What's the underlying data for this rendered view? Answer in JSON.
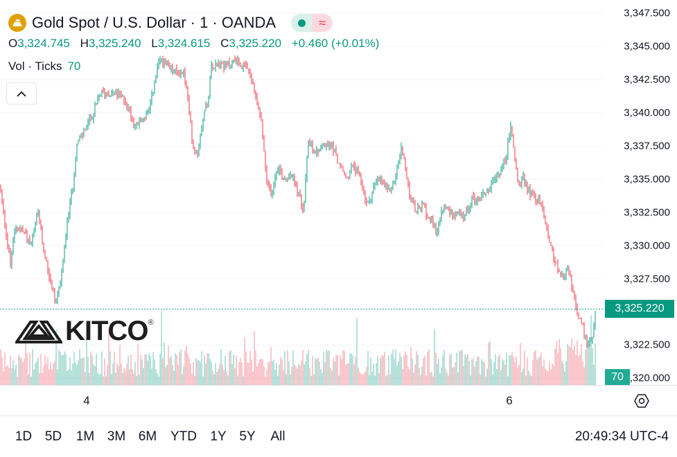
{
  "symbol": {
    "title": "Gold Spot / U.S. Dollar · 1 · OANDA",
    "icon": "gold-bar-icon",
    "status_icons": [
      "market-open-dot-icon",
      "wave-icon"
    ]
  },
  "ohlc": {
    "open_label": "O",
    "open": "3,324.745",
    "high_label": "H",
    "high": "3,325.240",
    "low_label": "L",
    "low": "3,324.615",
    "close_label": "C",
    "close": "3,325.220",
    "change": "+0.460 (+0.01%)"
  },
  "volume_legend": {
    "label": "Vol · Ticks",
    "value": "70"
  },
  "watermark": {
    "text": "KITCO",
    "mark": "®"
  },
  "colors": {
    "up": "#089981",
    "down": "#f23645",
    "grid": "#f0f3fa",
    "text": "#131722"
  },
  "price_scale": {
    "ticks": [
      "3,347.500",
      "3,345.000",
      "3,342.500",
      "3,340.000",
      "3,337.500",
      "3,335.000",
      "3,332.500",
      "3,330.000",
      "3,327.500",
      "3,322.500",
      "3,320.000"
    ],
    "current_price": "3,325.220",
    "current_volume": "70"
  },
  "time_axis": {
    "labels": [
      "4",
      "6"
    ]
  },
  "range_buttons": [
    "1D",
    "5D",
    "1M",
    "3M",
    "6M",
    "YTD",
    "1Y",
    "5Y",
    "All"
  ],
  "clock": "20:49:34 UTC-4",
  "chart_data": {
    "type": "candlestick",
    "title": "Gold Spot / U.S. Dollar · 1 · OANDA",
    "ylim": [
      3319.5,
      3348.5
    ],
    "y_ticks": [
      3347.5,
      3345,
      3342.5,
      3340,
      3337.5,
      3335,
      3332.5,
      3330,
      3327.5,
      3322.5,
      3320
    ],
    "x_labels": [
      "4",
      "6"
    ],
    "last_close": 3325.22,
    "last_volume": 70,
    "price_path": [
      [
        0,
        3334.5
      ],
      [
        10,
        3330.5
      ],
      [
        15,
        3328.5
      ],
      [
        22,
        3331.5
      ],
      [
        35,
        3331
      ],
      [
        45,
        3330
      ],
      [
        55,
        3332.5
      ],
      [
        62,
        3330
      ],
      [
        70,
        3328
      ],
      [
        80,
        3325.7
      ],
      [
        90,
        3328
      ],
      [
        95,
        3331
      ],
      [
        105,
        3334.5
      ],
      [
        110,
        3337.5
      ],
      [
        120,
        3338.5
      ],
      [
        135,
        3340
      ],
      [
        145,
        3341.5
      ],
      [
        165,
        3341.5
      ],
      [
        180,
        3341
      ],
      [
        195,
        3339
      ],
      [
        205,
        3339.5
      ],
      [
        215,
        3340
      ],
      [
        222,
        3342
      ],
      [
        230,
        3344
      ],
      [
        240,
        3343.5
      ],
      [
        255,
        3343
      ],
      [
        265,
        3343
      ],
      [
        270,
        3341.5
      ],
      [
        278,
        3337.5
      ],
      [
        285,
        3337
      ],
      [
        292,
        3339.5
      ],
      [
        300,
        3341
      ],
      [
        305,
        3343.5
      ],
      [
        315,
        3344
      ],
      [
        325,
        3343.5
      ],
      [
        340,
        3344
      ],
      [
        350,
        3343.5
      ],
      [
        360,
        3343
      ],
      [
        370,
        3341
      ],
      [
        378,
        3339
      ],
      [
        385,
        3334.5
      ],
      [
        392,
        3334
      ],
      [
        400,
        3336
      ],
      [
        410,
        3335
      ],
      [
        420,
        3335.5
      ],
      [
        430,
        3334
      ],
      [
        438,
        3332.5
      ],
      [
        445,
        3338
      ],
      [
        455,
        3337
      ],
      [
        465,
        3337.5
      ],
      [
        480,
        3337.5
      ],
      [
        490,
        3336
      ],
      [
        500,
        3335
      ],
      [
        510,
        3336
      ],
      [
        520,
        3335
      ],
      [
        530,
        3333
      ],
      [
        540,
        3334.5
      ],
      [
        550,
        3335
      ],
      [
        560,
        3334
      ],
      [
        570,
        3335
      ],
      [
        580,
        3337.5
      ],
      [
        590,
        3334
      ],
      [
        600,
        3332.5
      ],
      [
        610,
        3333
      ],
      [
        620,
        3332
      ],
      [
        630,
        3331
      ],
      [
        640,
        3333
      ],
      [
        650,
        3332.5
      ],
      [
        660,
        3332.5
      ],
      [
        670,
        3332
      ],
      [
        680,
        3333.5
      ],
      [
        690,
        3333.5
      ],
      [
        700,
        3334
      ],
      [
        710,
        3334.5
      ],
      [
        720,
        3335.5
      ],
      [
        730,
        3336.5
      ],
      [
        737,
        3339
      ],
      [
        742,
        3337
      ],
      [
        748,
        3334.5
      ],
      [
        755,
        3335
      ],
      [
        765,
        3334
      ],
      [
        775,
        3333.5
      ],
      [
        782,
        3333
      ],
      [
        790,
        3331
      ],
      [
        800,
        3329
      ],
      [
        810,
        3327.5
      ],
      [
        820,
        3328.5
      ],
      [
        830,
        3325.5
      ],
      [
        840,
        3324
      ],
      [
        848,
        3322.5
      ],
      [
        855,
        3323.2
      ],
      [
        860,
        3325.22
      ]
    ]
  }
}
